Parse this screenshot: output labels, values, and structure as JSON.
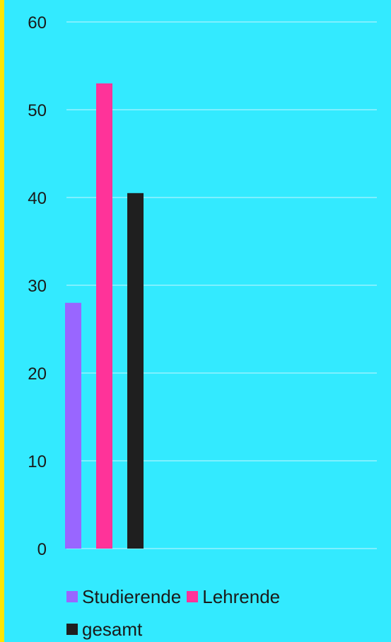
{
  "chart_data": {
    "type": "bar",
    "categories": [
      ""
    ],
    "series": [
      {
        "name": "Studierende",
        "values": [
          28
        ],
        "color": "#9966FF"
      },
      {
        "name": "Lehrende",
        "values": [
          53
        ],
        "color": "#FF3399"
      },
      {
        "name": "gesamt",
        "values": [
          40.5
        ],
        "color": "#1F1F1F"
      }
    ],
    "ylim": [
      0,
      60
    ],
    "yticks": [
      "0",
      "10",
      "20",
      "30",
      "40",
      "50",
      "60"
    ],
    "grid": true,
    "legend_position": "bottom"
  },
  "colors": {
    "background": "#33EAFF",
    "left_border": "#FFE600",
    "gridline": "#C9F7FF"
  }
}
